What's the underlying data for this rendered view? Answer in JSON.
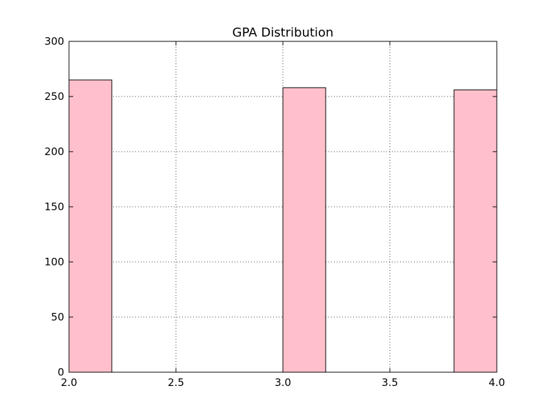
{
  "chart_data": {
    "type": "bar",
    "subtype": "histogram",
    "title": "GPA Distribution",
    "xlabel": "",
    "ylabel": "",
    "xlim": [
      2.0,
      4.0
    ],
    "ylim": [
      0,
      300
    ],
    "xticks": [
      2.0,
      2.5,
      3.0,
      3.5,
      4.0
    ],
    "xtick_labels": [
      "2.0",
      "2.5",
      "3.0",
      "3.5",
      "4.0"
    ],
    "yticks": [
      0,
      50,
      100,
      150,
      200,
      250,
      300
    ],
    "ytick_labels": [
      "0",
      "50",
      "100",
      "150",
      "200",
      "250",
      "300"
    ],
    "grid": true,
    "bin_edges": [
      2.0,
      2.2,
      2.4,
      2.6,
      2.8,
      3.0,
      3.2,
      3.4,
      3.6,
      3.8,
      4.0
    ],
    "values": [
      265,
      0,
      0,
      0,
      0,
      258,
      0,
      0,
      0,
      256
    ],
    "bar_color": "#ffc0cb",
    "edge_color": "#000000"
  }
}
